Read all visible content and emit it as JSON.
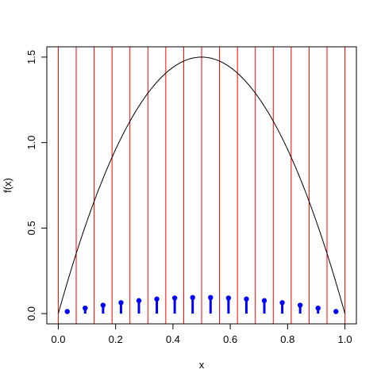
{
  "chart_data": {
    "type": "line",
    "title": "",
    "xlabel": "x",
    "ylabel": "f(x)",
    "xlim": [
      -0.04,
      1.04
    ],
    "ylim": [
      -0.06,
      1.56
    ],
    "x_ticks": [
      "0.0",
      "0.2",
      "0.4",
      "0.6",
      "0.8",
      "1.0"
    ],
    "y_ticks": [
      "0.0",
      "0.5",
      "1.0",
      "1.5"
    ],
    "grid": false,
    "curve": {
      "name": "",
      "formula": "f(x) = 6x(1-x)",
      "color": "#000000",
      "x": [
        0.0,
        0.05,
        0.1,
        0.15,
        0.2,
        0.25,
        0.3,
        0.35,
        0.4,
        0.45,
        0.5,
        0.55,
        0.6,
        0.65,
        0.7,
        0.75,
        0.8,
        0.85,
        0.9,
        0.95,
        1.0
      ],
      "y": [
        0.0,
        0.285,
        0.54,
        0.765,
        0.96,
        1.125,
        1.26,
        1.365,
        1.44,
        1.485,
        1.5,
        1.485,
        1.44,
        1.365,
        1.26,
        1.125,
        0.96,
        0.765,
        0.54,
        0.285,
        0.0
      ]
    },
    "partition_lines": {
      "color": "#ff0000",
      "x": [
        0.0,
        0.0625,
        0.125,
        0.1875,
        0.25,
        0.3125,
        0.375,
        0.4375,
        0.5,
        0.5625,
        0.625,
        0.6875,
        0.75,
        0.8125,
        0.875,
        0.9375,
        1.0
      ]
    },
    "stems": {
      "color": "#0000ff",
      "x": [
        0.03125,
        0.09375,
        0.15625,
        0.21875,
        0.28125,
        0.34375,
        0.40625,
        0.46875,
        0.53125,
        0.59375,
        0.65625,
        0.71875,
        0.78125,
        0.84375,
        0.90625,
        0.96875
      ],
      "y": [
        0.012,
        0.032,
        0.049,
        0.064,
        0.076,
        0.085,
        0.091,
        0.094,
        0.094,
        0.091,
        0.085,
        0.076,
        0.064,
        0.049,
        0.032,
        0.012
      ]
    }
  }
}
